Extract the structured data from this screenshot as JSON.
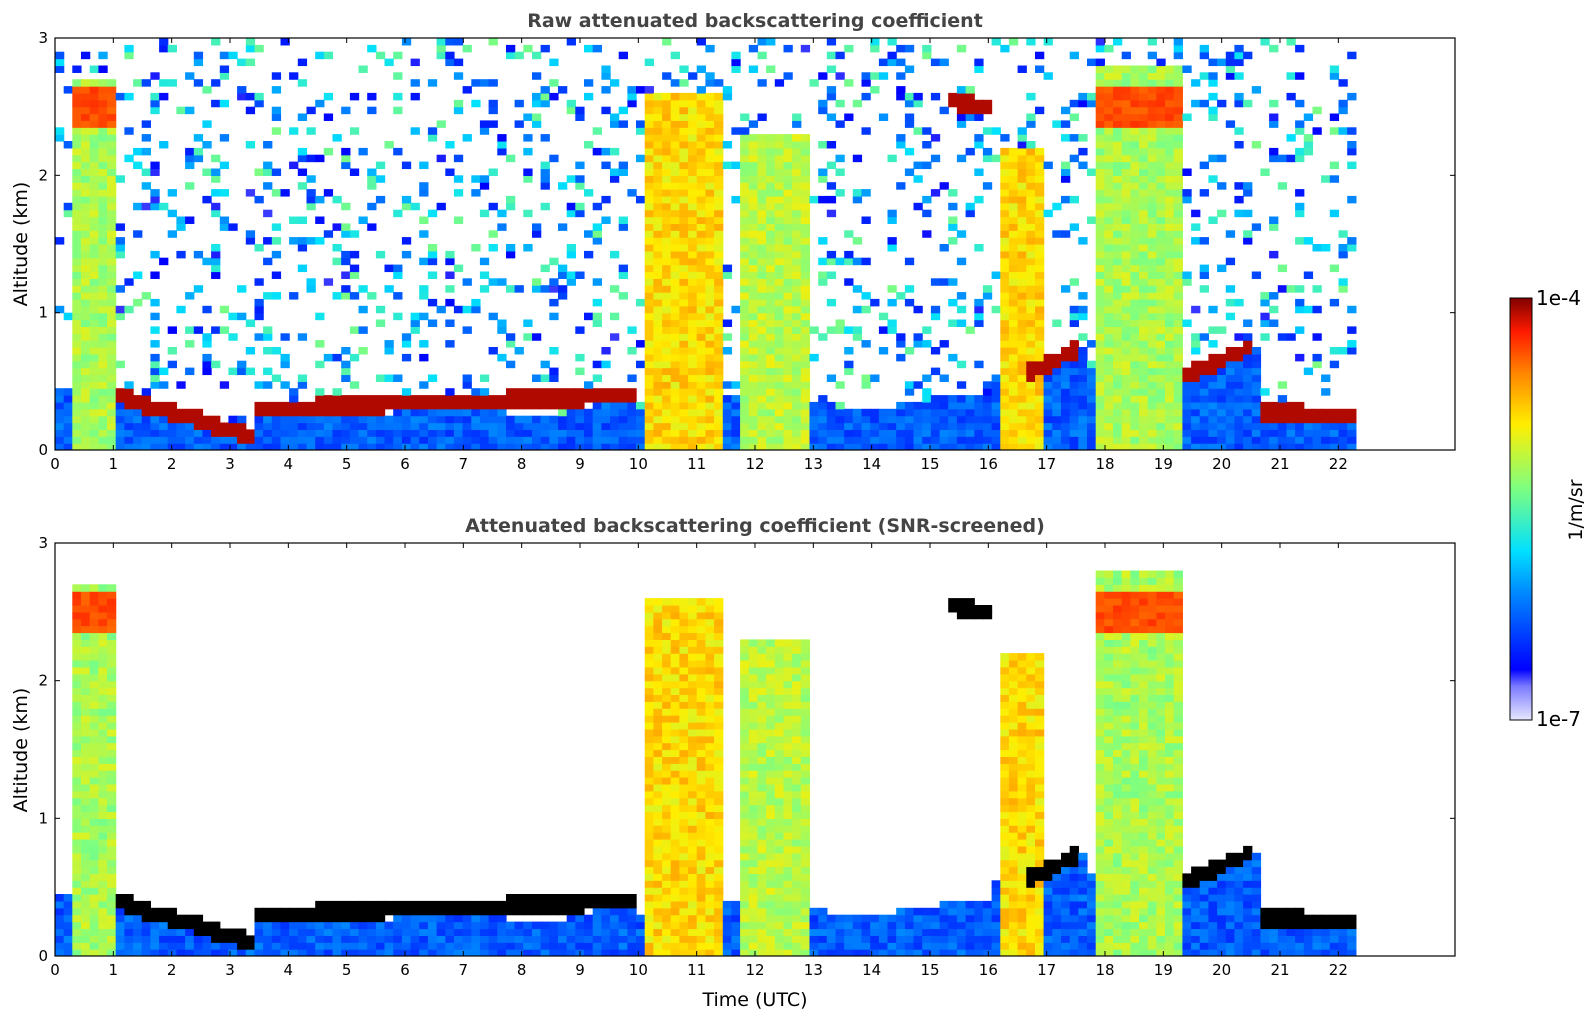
{
  "chart_data": [
    {
      "type": "heatmap",
      "title": "Raw attenuated backscattering coefficient",
      "xlabel": "",
      "ylabel": "Altitude (km)",
      "xlim": [
        0,
        24
      ],
      "ylim": [
        0,
        3
      ],
      "x_ticks": [
        0,
        1,
        2,
        3,
        4,
        5,
        6,
        7,
        8,
        9,
        10,
        11,
        12,
        13,
        14,
        15,
        16,
        17,
        18,
        19,
        20,
        21,
        22
      ],
      "y_ticks": [
        0,
        1,
        2,
        3
      ],
      "data_end_time": 22.3,
      "screened": false,
      "features": [
        {
          "kind": "column",
          "start": 0.3,
          "end": 1.0,
          "top_km": 2.7,
          "peak_km": 2.5,
          "level": "high"
        },
        {
          "kind": "column",
          "start": 10.1,
          "end": 11.5,
          "top_km": 2.6,
          "level": "mid-high"
        },
        {
          "kind": "column",
          "start": 11.8,
          "end": 13.0,
          "top_km": 2.3,
          "level": "mid"
        },
        {
          "kind": "column",
          "start": 16.2,
          "end": 17.0,
          "top_km": 2.2,
          "level": "mid-high"
        },
        {
          "kind": "column",
          "start": 17.8,
          "end": 19.4,
          "top_km": 2.8,
          "peak_km": 2.5,
          "level": "high"
        },
        {
          "kind": "layer",
          "start": 1.0,
          "end": 3.4,
          "from_km": 0.4,
          "to_km": 0.1,
          "level": "very-high"
        },
        {
          "kind": "layer",
          "start": 3.4,
          "end": 10.0,
          "from_km": 0.3,
          "to_km": 0.4,
          "level": "very-high"
        },
        {
          "kind": "layer",
          "start": 15.3,
          "end": 16.0,
          "from_km": 2.55,
          "to_km": 2.5,
          "level": "very-high"
        },
        {
          "kind": "layer",
          "start": 16.6,
          "end": 17.6,
          "from_km": 0.55,
          "to_km": 0.75,
          "level": "very-high"
        },
        {
          "kind": "layer",
          "start": 19.4,
          "end": 20.5,
          "from_km": 0.55,
          "to_km": 0.75,
          "level": "very-high"
        },
        {
          "kind": "layer",
          "start": 20.6,
          "end": 22.3,
          "from_km": 0.28,
          "to_km": 0.25,
          "level": "very-high"
        }
      ]
    },
    {
      "type": "heatmap",
      "title": "Attenuated backscattering coefficient (SNR-screened)",
      "xlabel": "Time (UTC)",
      "ylabel": "Altitude (km)",
      "xlim": [
        0,
        24
      ],
      "ylim": [
        0,
        3
      ],
      "x_ticks": [
        0,
        1,
        2,
        3,
        4,
        5,
        6,
        7,
        8,
        9,
        10,
        11,
        12,
        13,
        14,
        15,
        16,
        17,
        18,
        19,
        20,
        21,
        22
      ],
      "y_ticks": [
        0,
        1,
        2,
        3
      ],
      "data_end_time": 22.3,
      "screened": true
    }
  ],
  "colorbar": {
    "label": "1/m/sr",
    "max_label": "1e-4",
    "min_label": "1e-7",
    "colormap": "jet",
    "scale": "log"
  },
  "colors": {
    "title_text": "#444444",
    "background": "#ffffff",
    "saturated": "#000000"
  }
}
